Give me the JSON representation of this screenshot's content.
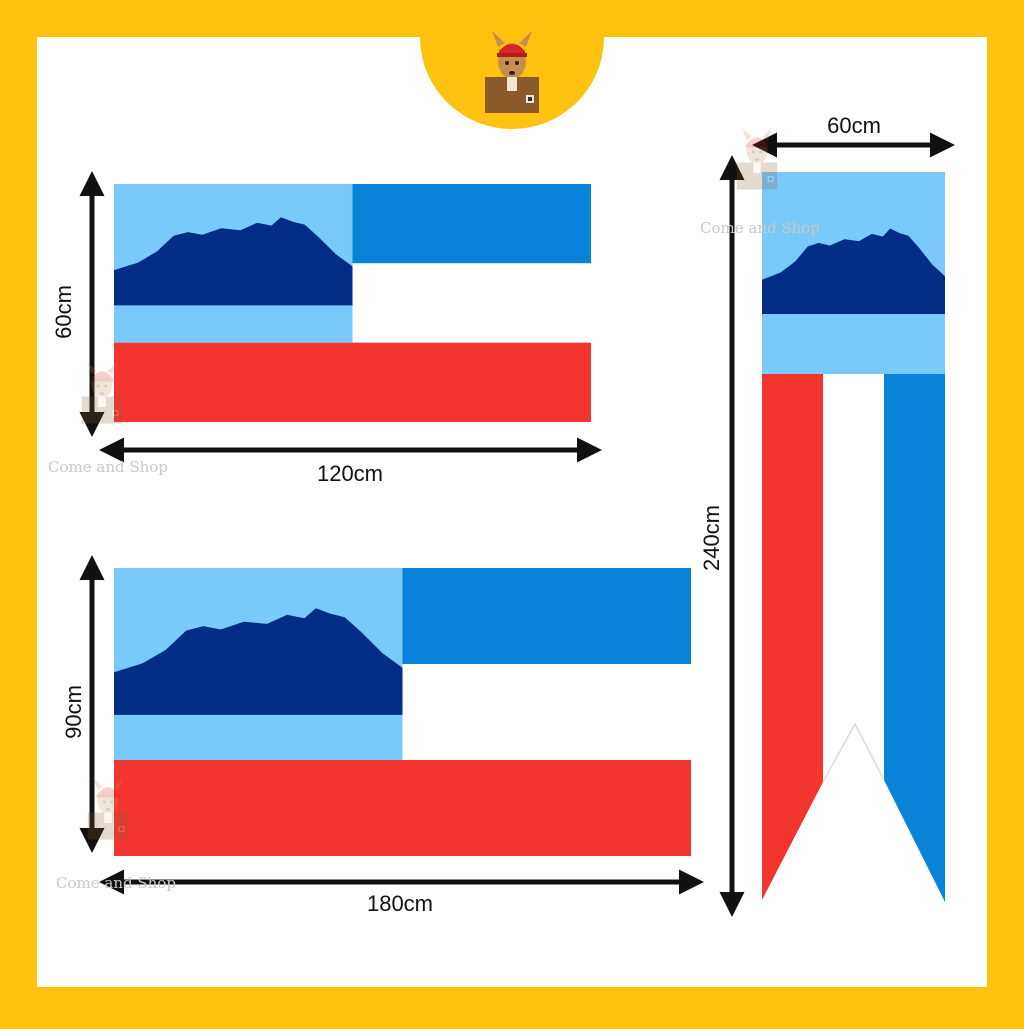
{
  "colors": {
    "frame": "#FFC20E",
    "canvas": "#FFFFFF",
    "sky": "#79C9FB",
    "mountain": "#022D84",
    "blue_band": "#0883D9",
    "white_band": "#FFFFFF",
    "red_band": "#F3352F",
    "arrow": "#111111"
  },
  "logo": {
    "icon": "kangaroo-with-box-icon"
  },
  "flags": [
    {
      "name": "small-flag",
      "width_label": "120cm",
      "height_label": "60cm"
    },
    {
      "name": "large-flag",
      "width_label": "180cm",
      "height_label": "90cm"
    },
    {
      "name": "vertical-banner",
      "width_label": "60cm",
      "height_label": "240cm"
    }
  ],
  "watermark": {
    "text": "Come and Shop",
    "icon": "kangaroo-watermark-icon"
  }
}
